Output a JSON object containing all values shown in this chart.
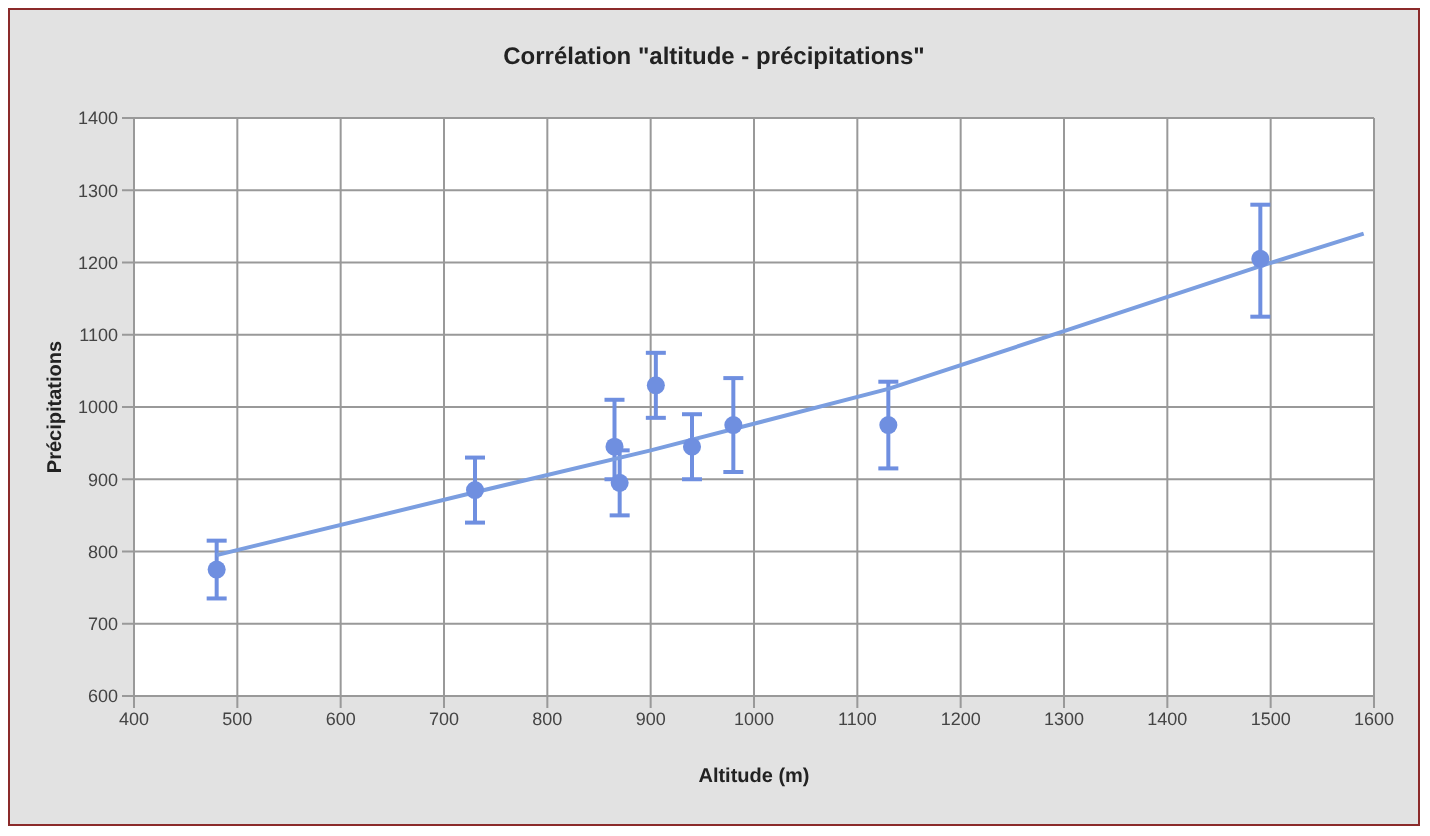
{
  "chart_data": {
    "type": "scatter",
    "title": "Corrélation \"altitude - précipitations\"",
    "xlabel": "Altitude (m)",
    "ylabel": "Précipitations",
    "xlim": [
      400,
      1600
    ],
    "xticks": [
      400,
      500,
      600,
      700,
      800,
      900,
      1000,
      1100,
      1200,
      1300,
      1400,
      1500,
      1600
    ],
    "ylim": [
      600,
      1400
    ],
    "yticks": [
      600,
      700,
      800,
      900,
      1000,
      1100,
      1200,
      1300,
      1400
    ],
    "grid": true,
    "legend": false,
    "marker": "circle",
    "series": [
      {
        "color": "#6f8fe0",
        "x": [
          480,
          730,
          865,
          870,
          905,
          940,
          980,
          1130,
          1490
        ],
        "values": [
          775,
          885,
          945,
          895,
          1030,
          945,
          975,
          975,
          1205
        ],
        "errors": [
          [
            735,
            815
          ],
          [
            840,
            930
          ],
          [
            900,
            1010
          ],
          [
            850,
            940
          ],
          [
            985,
            1075
          ],
          [
            900,
            990
          ],
          [
            910,
            1040
          ],
          [
            915,
            1035
          ],
          [
            1125,
            1280
          ]
        ]
      },
      {
        "type": "line",
        "color": "#7b9ee0",
        "line_style": "solid",
        "marker": "none",
        "x": [
          480,
          730,
          900,
          1130,
          1300,
          1490,
          1590
        ],
        "values": [
          795,
          882,
          940,
          1025,
          1105,
          1195,
          1240
        ]
      }
    ]
  }
}
